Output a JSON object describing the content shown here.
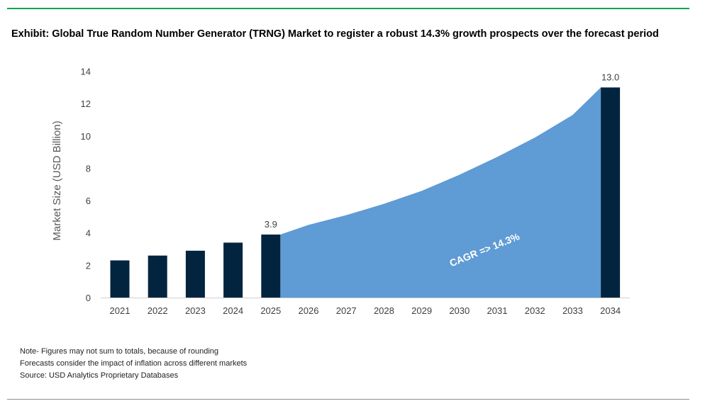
{
  "title": "Exhibit: Global True Random Number Generator (TRNG) Market to register a robust 14.3% growth prospects over the forecast period",
  "notes": [
    "Note- Figures may not sum to totals, because of rounding",
    "Forecasts consider the impact of inflation across different markets",
    "Source: USD Analytics Proprietary Databases"
  ],
  "chart_data": {
    "type": "bar",
    "categories": [
      "2021",
      "2022",
      "2023",
      "2024",
      "2025",
      "2026",
      "2027",
      "2028",
      "2029",
      "2030",
      "2031",
      "2032",
      "2033",
      "2034"
    ],
    "bars": [
      2.3,
      2.6,
      2.9,
      3.4,
      3.9,
      null,
      null,
      null,
      null,
      null,
      null,
      null,
      null,
      13.0
    ],
    "area_values": [
      null,
      null,
      null,
      null,
      3.9,
      4.5,
      5.1,
      5.8,
      6.6,
      7.6,
      8.7,
      9.9,
      11.3,
      13.0
    ],
    "data_labels": {
      "2025": "3.9",
      "2034": "13.0"
    },
    "annotation": "CAGR => 14.3%",
    "ylabel": "Market Size (USD Billion)",
    "xlabel": "",
    "ylim": [
      0,
      14
    ],
    "yticks": [
      0,
      2,
      4,
      6,
      8,
      10,
      12,
      14
    ],
    "grid": false,
    "colors": {
      "bar": "#02243f",
      "area": "#5f9bd4",
      "title_rule": "#00a651"
    }
  }
}
